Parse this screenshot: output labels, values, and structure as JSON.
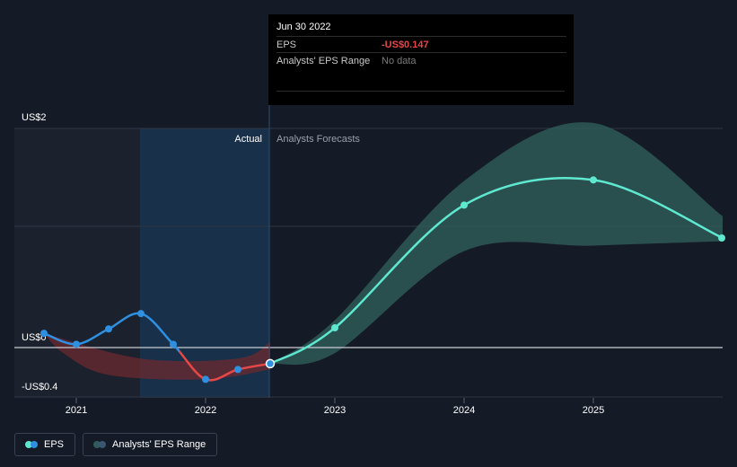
{
  "tooltip": {
    "date": "Jun 30 2022",
    "eps_label": "EPS",
    "eps_value": "-US$0.147",
    "range_label": "Analysts' EPS Range",
    "range_value": "No data"
  },
  "legend": {
    "eps_label": "EPS",
    "range_label": "Analysts' EPS Range"
  },
  "colors": {
    "background": "#151b26",
    "eps_positive": "#2f8fe0",
    "eps_negative": "#e64848",
    "forecast": "#5ee8d0",
    "forecast_band": "#2f5c5a",
    "past_highlight": "#1a3350",
    "negative_band": "#6b2a30"
  },
  "chart_data": {
    "type": "line",
    "y_tick_labels": [
      "US$2",
      "US$0",
      "-US$0.4"
    ],
    "x_tick_labels": [
      "2021",
      "2022",
      "2023",
      "2024",
      "2025"
    ],
    "ylim": [
      -0.4,
      2.0
    ],
    "region_labels": {
      "actual": "Actual",
      "forecast": "Analysts Forecasts"
    },
    "series": [
      {
        "name": "EPS",
        "kind": "actual",
        "points": [
          {
            "x": 2020.75,
            "y": 0.13
          },
          {
            "x": 2021.0,
            "y": 0.03
          },
          {
            "x": 2021.25,
            "y": 0.17
          },
          {
            "x": 2021.5,
            "y": 0.31
          },
          {
            "x": 2021.75,
            "y": 0.03
          },
          {
            "x": 2022.0,
            "y": -0.29
          },
          {
            "x": 2022.25,
            "y": -0.2
          },
          {
            "x": 2022.5,
            "y": -0.147
          }
        ]
      },
      {
        "name": "EPS forecast",
        "kind": "forecast",
        "points": [
          {
            "x": 2022.5,
            "y": -0.147
          },
          {
            "x": 2023.0,
            "y": 0.18
          },
          {
            "x": 2024.0,
            "y": 1.3
          },
          {
            "x": 2025.0,
            "y": 1.53
          },
          {
            "x": 2026.0,
            "y": 1.0
          }
        ]
      }
    ],
    "forecast_range": {
      "high": [
        {
          "x": 2022.5,
          "y": -0.147
        },
        {
          "x": 2023.0,
          "y": 0.25
        },
        {
          "x": 2024.0,
          "y": 1.52
        },
        {
          "x": 2025.0,
          "y": 2.05
        },
        {
          "x": 2026.0,
          "y": 1.2
        }
      ],
      "low": [
        {
          "x": 2022.5,
          "y": -0.147
        },
        {
          "x": 2023.0,
          "y": -0.05
        },
        {
          "x": 2024.0,
          "y": 0.88
        },
        {
          "x": 2025.0,
          "y": 0.93
        },
        {
          "x": 2026.0,
          "y": 0.97
        }
      ]
    }
  }
}
